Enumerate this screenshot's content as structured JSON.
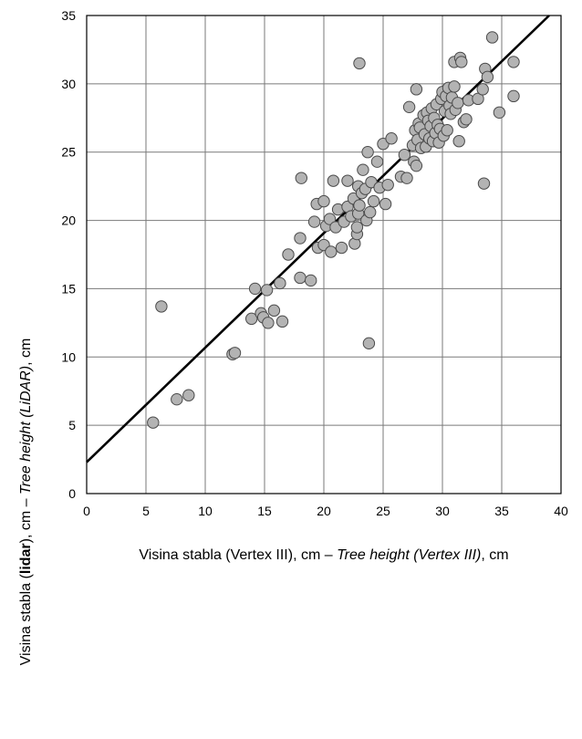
{
  "chart_data": {
    "type": "scatter",
    "title": "",
    "xlabel": {
      "main": "Visina stabla (Vertex III), cm – ",
      "italic": "Tree height (Vertex III)",
      "unit": ", cm"
    },
    "ylabel": {
      "pre": "Visina stabla (",
      "bold": "lidar",
      "mid": "), cm – ",
      "italic": "Tree height (LiDAR)",
      "unit": ", cm"
    },
    "xlim": [
      0,
      40
    ],
    "ylim": [
      0,
      35
    ],
    "xticks": [
      0,
      5,
      10,
      15,
      20,
      25,
      30,
      35,
      40
    ],
    "yticks": [
      0,
      5,
      10,
      15,
      20,
      25,
      30,
      35
    ],
    "grid": true,
    "marker_color": "#b3b3b3",
    "line_color": "#000000",
    "regression_line": {
      "x": [
        0,
        39
      ],
      "y": [
        2.3,
        35
      ]
    },
    "points": [
      [
        5.6,
        5.2
      ],
      [
        6.3,
        13.7
      ],
      [
        7.6,
        6.9
      ],
      [
        8.6,
        7.2
      ],
      [
        12.3,
        10.2
      ],
      [
        12.5,
        10.3
      ],
      [
        14.2,
        15.0
      ],
      [
        13.9,
        12.8
      ],
      [
        14.7,
        13.2
      ],
      [
        14.9,
        12.9
      ],
      [
        15.2,
        14.9
      ],
      [
        15.3,
        12.5
      ],
      [
        15.8,
        13.4
      ],
      [
        16.3,
        15.4
      ],
      [
        16.5,
        12.6
      ],
      [
        17.0,
        17.5
      ],
      [
        18.0,
        18.7
      ],
      [
        18.0,
        15.8
      ],
      [
        18.1,
        23.1
      ],
      [
        18.9,
        15.6
      ],
      [
        19.2,
        19.9
      ],
      [
        19.4,
        21.2
      ],
      [
        19.5,
        18.0
      ],
      [
        20.0,
        21.4
      ],
      [
        20.0,
        18.2
      ],
      [
        20.2,
        19.6
      ],
      [
        20.5,
        20.1
      ],
      [
        20.6,
        17.7
      ],
      [
        20.8,
        22.9
      ],
      [
        21.0,
        19.5
      ],
      [
        21.2,
        20.8
      ],
      [
        21.5,
        18.0
      ],
      [
        21.7,
        19.9
      ],
      [
        22.0,
        21.0
      ],
      [
        22.0,
        22.9
      ],
      [
        22.3,
        20.3
      ],
      [
        22.5,
        21.6
      ],
      [
        22.6,
        18.3
      ],
      [
        22.8,
        19.0
      ],
      [
        22.8,
        19.5
      ],
      [
        22.9,
        20.5
      ],
      [
        22.9,
        22.5
      ],
      [
        23.0,
        21.1
      ],
      [
        23.0,
        31.5
      ],
      [
        23.2,
        22.0
      ],
      [
        23.3,
        23.7
      ],
      [
        23.5,
        22.3
      ],
      [
        23.6,
        20.0
      ],
      [
        23.7,
        25.0
      ],
      [
        23.8,
        11.0
      ],
      [
        23.9,
        20.6
      ],
      [
        24.0,
        22.8
      ],
      [
        24.2,
        21.4
      ],
      [
        24.5,
        24.3
      ],
      [
        24.7,
        22.4
      ],
      [
        25.0,
        25.6
      ],
      [
        25.2,
        21.2
      ],
      [
        25.4,
        22.6
      ],
      [
        25.7,
        26.0
      ],
      [
        26.5,
        23.2
      ],
      [
        26.8,
        24.8
      ],
      [
        27.0,
        23.1
      ],
      [
        27.2,
        28.3
      ],
      [
        27.5,
        25.5
      ],
      [
        27.6,
        24.3
      ],
      [
        27.7,
        26.6
      ],
      [
        27.8,
        24.0
      ],
      [
        27.9,
        25.9
      ],
      [
        27.8,
        29.6
      ],
      [
        28.0,
        27.1
      ],
      [
        28.1,
        26.8
      ],
      [
        28.2,
        25.3
      ],
      [
        28.4,
        27.7
      ],
      [
        28.5,
        26.3
      ],
      [
        28.6,
        25.4
      ],
      [
        28.7,
        27.9
      ],
      [
        28.8,
        27.3
      ],
      [
        28.9,
        26.0
      ],
      [
        29.0,
        26.9
      ],
      [
        29.1,
        28.2
      ],
      [
        29.2,
        25.8
      ],
      [
        29.3,
        27.5
      ],
      [
        29.4,
        26.4
      ],
      [
        29.5,
        28.5
      ],
      [
        29.6,
        27.0
      ],
      [
        29.7,
        25.7
      ],
      [
        29.8,
        26.7
      ],
      [
        29.9,
        28.9
      ],
      [
        30.0,
        29.4
      ],
      [
        30.1,
        26.2
      ],
      [
        30.2,
        28.0
      ],
      [
        30.3,
        29.1
      ],
      [
        30.4,
        26.6
      ],
      [
        30.5,
        29.7
      ],
      [
        30.6,
        28.4
      ],
      [
        30.7,
        27.8
      ],
      [
        30.8,
        29.0
      ],
      [
        31.0,
        31.6
      ],
      [
        31.0,
        29.8
      ],
      [
        31.1,
        28.1
      ],
      [
        31.3,
        28.6
      ],
      [
        31.4,
        25.8
      ],
      [
        31.5,
        31.9
      ],
      [
        31.6,
        31.6
      ],
      [
        31.8,
        27.2
      ],
      [
        32.0,
        27.4
      ],
      [
        32.2,
        28.8
      ],
      [
        33.0,
        28.9
      ],
      [
        33.4,
        29.6
      ],
      [
        33.5,
        22.7
      ],
      [
        33.6,
        31.1
      ],
      [
        33.8,
        30.5
      ],
      [
        34.2,
        33.4
      ],
      [
        34.8,
        27.9
      ],
      [
        36.0,
        31.6
      ],
      [
        36.0,
        29.1
      ]
    ]
  }
}
